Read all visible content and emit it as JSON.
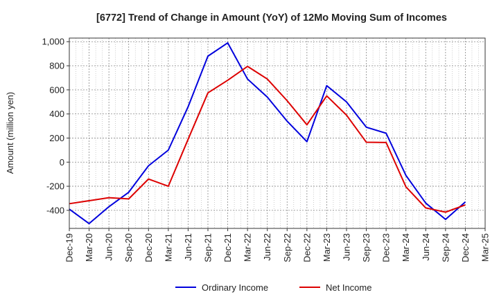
{
  "chart_data": {
    "type": "line",
    "title": "[6772]  Trend of Change in Amount (YoY) of 12Mo Moving Sum of Incomes",
    "ylabel": "Amount (million yen)",
    "xlabel": "",
    "ylim": [
      -550,
      1030
    ],
    "yticks": [
      -400,
      -200,
      0,
      200,
      400,
      600,
      800,
      1000
    ],
    "ytick_labels": [
      "-400",
      "-200",
      "0",
      "200",
      "400",
      "600",
      "800",
      "1,000"
    ],
    "x_periods": [
      "Dec-19",
      "Mar-20",
      "Jun-20",
      "Sep-20",
      "Dec-20",
      "Mar-21",
      "Jun-21",
      "Sep-21",
      "Dec-21",
      "Mar-22",
      "Jun-22",
      "Sep-22",
      "Dec-22",
      "Mar-23",
      "Jun-23",
      "Sep-23",
      "Dec-23",
      "Mar-24",
      "Jun-24",
      "Sep-24",
      "Dec-24",
      "Mar-25"
    ],
    "grid": true,
    "legend_position": "bottom",
    "series": [
      {
        "name": "Ordinary Income",
        "color": "#0000dd",
        "values": [
          -390,
          -510,
          -370,
          -250,
          -30,
          100,
          460,
          880,
          990,
          690,
          540,
          340,
          170,
          635,
          500,
          290,
          240,
          -110,
          -340,
          -475,
          -330,
          null
        ]
      },
      {
        "name": "Net Income",
        "color": "#dd0000",
        "values": [
          -345,
          -320,
          -295,
          -305,
          -140,
          -200,
          190,
          575,
          680,
          795,
          690,
          510,
          310,
          550,
          390,
          165,
          163,
          -205,
          -380,
          -415,
          -355,
          null
        ]
      }
    ]
  }
}
